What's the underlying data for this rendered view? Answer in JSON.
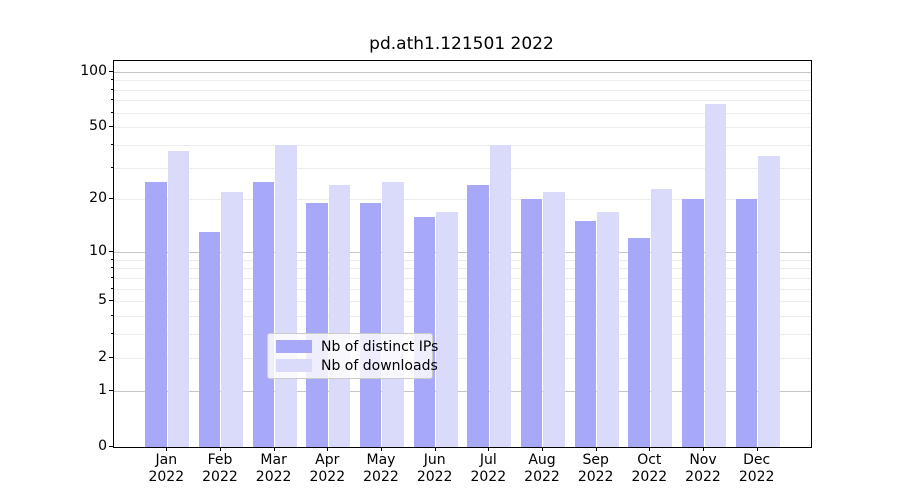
{
  "title": "pd.ath1.121501 2022",
  "chart_data": {
    "type": "bar",
    "title": "pd.ath1.121501 2022",
    "months": [
      "Jan",
      "Feb",
      "Mar",
      "Apr",
      "May",
      "Jun",
      "Jul",
      "Aug",
      "Sep",
      "Oct",
      "Nov",
      "Dec"
    ],
    "year_label": "2022",
    "categories": [
      "Jan 2022",
      "Feb 2022",
      "Mar 2022",
      "Apr 2022",
      "May 2022",
      "Jun 2022",
      "Jul 2022",
      "Aug 2022",
      "Sep 2022",
      "Oct 2022",
      "Nov 2022",
      "Dec 2022"
    ],
    "series": [
      {
        "name": "Nb of distinct IPs",
        "color": "#a8a8f8",
        "values": [
          25,
          13,
          25,
          19,
          19,
          16,
          24,
          20,
          15,
          12,
          20,
          20
        ]
      },
      {
        "name": "Nb of downloads",
        "color": "#dadafa",
        "values": [
          37,
          22,
          40,
          24,
          25,
          17,
          40,
          22,
          17,
          23,
          67,
          35
        ]
      }
    ],
    "yscale": "log1p",
    "ylim": [
      0,
      114
    ],
    "ytick_labels": [
      "0",
      "1",
      "2",
      "5",
      "10",
      "20",
      "50",
      "100"
    ],
    "yticks_major": [
      0,
      1,
      2,
      5,
      10,
      20,
      50,
      100
    ],
    "yticks_minor": [
      3,
      4,
      6,
      7,
      8,
      9,
      30,
      40,
      60,
      70,
      80,
      90
    ],
    "grid": true,
    "legend_position": "lower center"
  },
  "legend": {
    "items": [
      {
        "label": "Nb of distinct IPs",
        "color": "#a8a8f8"
      },
      {
        "label": "Nb of downloads",
        "color": "#dadafa"
      }
    ]
  },
  "colors": {
    "bar_dark": "#a8a8f8",
    "bar_light": "#dadafa",
    "grid_minor": "#ececec",
    "grid_major": "#c6c6c6",
    "axis": "#000000",
    "background": "#ffffff"
  }
}
